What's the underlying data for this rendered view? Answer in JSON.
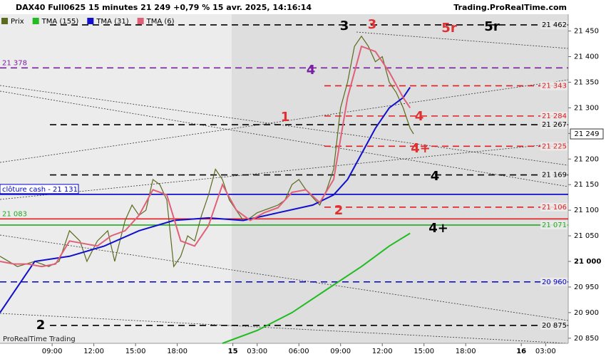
{
  "chart_data": {
    "type": "line",
    "title": "DAX40 Full0625 15 minutes 21 249 +0,79 % 15 avr. 2025, 14:16:14",
    "source": "Trading.ProRealTime.com",
    "footer": "ProRealTime Trading",
    "xlim": [
      0,
      163.5
    ],
    "ylim": [
      20840,
      21480
    ],
    "xticks": [
      {
        "value": 15,
        "label": "09:00"
      },
      {
        "value": 27,
        "label": "12:00"
      },
      {
        "value": 39,
        "label": "15:00"
      },
      {
        "value": 51,
        "label": "18:00"
      },
      {
        "value": 67,
        "label": "15"
      },
      {
        "value": 74,
        "label": "03:00"
      },
      {
        "value": 86,
        "label": "06:00"
      },
      {
        "value": 98,
        "label": "09:00"
      },
      {
        "value": 110,
        "label": "12:00"
      },
      {
        "value": 122,
        "label": "15:00"
      },
      {
        "value": 134,
        "label": "18:00"
      },
      {
        "value": 150,
        "label": "16"
      },
      {
        "value": 157,
        "label": "03:00"
      }
    ],
    "yticks": [
      {
        "value": 21450,
        "label": "21 450"
      },
      {
        "value": 21400,
        "label": "21 400"
      },
      {
        "value": 21350,
        "label": "21 350"
      },
      {
        "value": 21300,
        "label": "21 300"
      },
      {
        "value": 21250,
        "label": "21 250"
      },
      {
        "value": 21200,
        "label": "21 200"
      },
      {
        "value": 21150,
        "label": "21 150"
      },
      {
        "value": 21100,
        "label": "21 100"
      },
      {
        "value": 21050,
        "label": "21 050"
      },
      {
        "value": 21000,
        "label": "21 000"
      },
      {
        "value": 20950,
        "label": "20 950"
      },
      {
        "value": 20900,
        "label": "20 900"
      },
      {
        "value": 20850,
        "label": "20 850"
      }
    ],
    "series": [
      {
        "name": "Prix",
        "color": "#5a6b1e",
        "x": [
          0,
          5,
          10,
          14,
          17,
          20,
          23,
          25,
          28,
          31,
          33,
          36,
          38,
          40,
          42,
          44,
          46,
          48,
          50,
          52,
          54,
          56,
          58,
          60,
          62,
          64,
          66,
          70,
          72,
          74,
          76,
          78,
          80,
          82,
          84,
          86,
          88,
          90,
          92,
          94,
          96,
          98,
          100,
          102,
          104,
          106,
          108,
          110,
          112,
          114,
          116,
          118,
          119
        ],
        "values": [
          21010,
          20990,
          21000,
          20990,
          21000,
          21060,
          21040,
          21000,
          21040,
          21060,
          21000,
          21080,
          21110,
          21090,
          21100,
          21160,
          21150,
          21120,
          20990,
          21010,
          21050,
          21040,
          21090,
          21130,
          21180,
          21160,
          21120,
          21080,
          21085,
          21095,
          21100,
          21105,
          21110,
          21120,
          21150,
          21160,
          21140,
          21125,
          21110,
          21140,
          21180,
          21300,
          21350,
          21420,
          21440,
          21420,
          21390,
          21400,
          21350,
          21330,
          21300,
          21260,
          21249
        ]
      },
      {
        "name": "TMA (155)",
        "color": "#22bb22",
        "x": [
          64,
          74,
          84,
          94,
          104,
          112,
          118
        ],
        "values": [
          20840,
          20865,
          20900,
          20945,
          20990,
          21030,
          21055
        ]
      },
      {
        "name": "TMA (31)",
        "color": "#1010cc",
        "x": [
          0,
          10,
          20,
          30,
          40,
          50,
          60,
          70,
          80,
          90,
          96,
          100,
          104,
          108,
          112,
          116,
          118
        ],
        "values": [
          20900,
          21000,
          21010,
          21030,
          21060,
          21080,
          21085,
          21080,
          21095,
          21110,
          21130,
          21160,
          21210,
          21260,
          21300,
          21320,
          21340
        ]
      },
      {
        "name": "TMA (6)",
        "color": "#e0607a",
        "x": [
          0,
          4,
          8,
          12,
          16,
          20,
          24,
          28,
          32,
          36,
          40,
          44,
          48,
          52,
          56,
          60,
          64,
          68,
          72,
          76,
          80,
          84,
          88,
          92,
          96,
          100,
          104,
          108,
          112,
          116,
          118
        ],
        "values": [
          21000,
          20995,
          20995,
          20990,
          20995,
          21040,
          21035,
          21030,
          21050,
          21060,
          21090,
          21140,
          21130,
          21040,
          21030,
          21070,
          21150,
          21100,
          21080,
          21095,
          21105,
          21135,
          21140,
          21115,
          21160,
          21320,
          21420,
          21410,
          21370,
          21320,
          21300
        ]
      }
    ],
    "levels": [
      {
        "value": 21462,
        "label": "21 462",
        "color": "#000000",
        "style": "dash",
        "side": "right"
      },
      {
        "value": 21378,
        "label": "21 378",
        "color": "#7a1fa2",
        "style": "dash",
        "side": "left"
      },
      {
        "value": 21343,
        "label": "21 343",
        "color": "#e02020",
        "style": "dash",
        "side": "right"
      },
      {
        "value": 21284,
        "label": "21 284",
        "color": "#e02020",
        "style": "dash",
        "side": "right"
      },
      {
        "value": 21267,
        "label": "21 267",
        "color": "#000000",
        "style": "dash",
        "side": "right"
      },
      {
        "value": 21225,
        "label": "21 225",
        "color": "#e02020",
        "style": "dash",
        "side": "right"
      },
      {
        "value": 21169,
        "label": "21 169",
        "color": "#000000",
        "style": "dash",
        "side": "right"
      },
      {
        "value": 21131,
        "label": "clôture cash - 21 131",
        "color": "#0000cc",
        "style": "solid",
        "side": "left"
      },
      {
        "value": 21106,
        "label": "21 106",
        "color": "#e02020",
        "style": "dash",
        "side": "right"
      },
      {
        "value": 21083,
        "label": "21 083",
        "color": "#e02020",
        "style": "solid",
        "side": "left"
      },
      {
        "value": 21071,
        "label": "21 071",
        "color": "#22aa22",
        "style": "solid",
        "side": "right"
      },
      {
        "value": 20960,
        "label": "20 960",
        "color": "#0000cc",
        "style": "dash",
        "side": "right"
      },
      {
        "value": 20875,
        "label": "20 875",
        "color": "#000000",
        "style": "dash",
        "side": "right"
      }
    ],
    "last_price": {
      "value": 21249,
      "label": "21 249"
    },
    "annotations": [
      {
        "text": "3",
        "color": "#000000"
      },
      {
        "text": "3",
        "color": "#e03030"
      },
      {
        "text": "5r",
        "color": "#e03030"
      },
      {
        "text": "5r",
        "color": "#000000"
      },
      {
        "text": "4",
        "color": "#7a1fa2"
      },
      {
        "text": "1",
        "color": "#e03030"
      },
      {
        "text": "4",
        "color": "#e03030"
      },
      {
        "text": "4+",
        "color": "#e03030"
      },
      {
        "text": "4",
        "color": "#000000"
      },
      {
        "text": "2",
        "color": "#e03030"
      },
      {
        "text": "4+",
        "color": "#000000"
      },
      {
        "text": "2",
        "color": "#000000"
      }
    ]
  }
}
